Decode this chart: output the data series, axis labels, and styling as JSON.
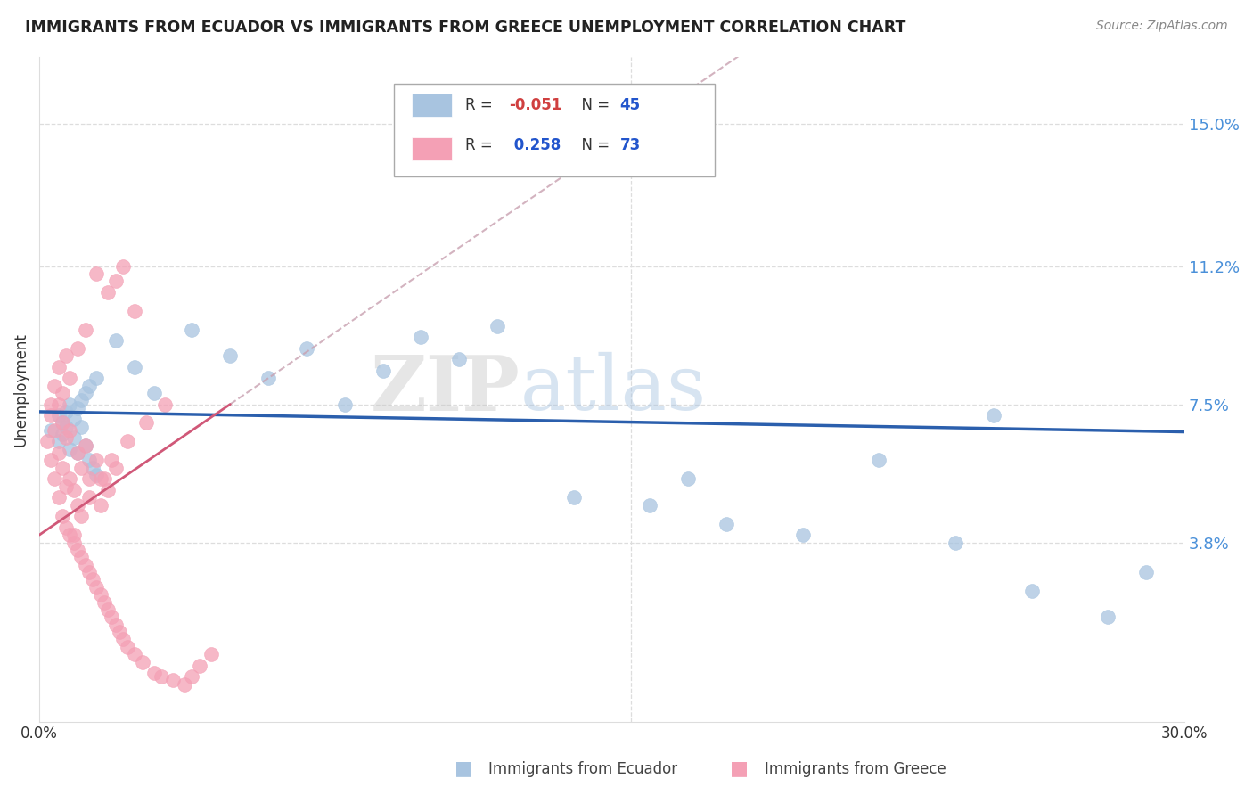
{
  "title": "IMMIGRANTS FROM ECUADOR VS IMMIGRANTS FROM GREECE UNEMPLOYMENT CORRELATION CHART",
  "source": "Source: ZipAtlas.com",
  "ylabel": "Unemployment",
  "ytick_labels": [
    "15.0%",
    "11.2%",
    "7.5%",
    "3.8%"
  ],
  "ytick_values": [
    0.15,
    0.112,
    0.075,
    0.038
  ],
  "xmin": 0.0,
  "xmax": 0.3,
  "ymin": -0.01,
  "ymax": 0.168,
  "legend_ecuador_R": "-0.051",
  "legend_ecuador_N": "45",
  "legend_greece_R": "0.258",
  "legend_greece_N": "73",
  "color_ecuador": "#a8c4e0",
  "color_ecuador_edge": "#7aacd0",
  "color_greece": "#f4a0b5",
  "color_greece_edge": "#e07090",
  "trendline_ecuador_color": "#2b5fad",
  "trendline_greece_color": "#d05878",
  "trendline_greece_dash_color": "#c8a0b0",
  "watermark_color": "#d8e4f0",
  "title_color": "#222222",
  "source_color": "#888888",
  "ytick_color": "#4a90d9",
  "grid_color": "#dddddd",
  "ecuador_x": [
    0.003,
    0.005,
    0.005,
    0.006,
    0.006,
    0.007,
    0.007,
    0.008,
    0.008,
    0.009,
    0.009,
    0.01,
    0.01,
    0.011,
    0.011,
    0.012,
    0.012,
    0.013,
    0.013,
    0.014,
    0.015,
    0.015,
    0.02,
    0.025,
    0.03,
    0.04,
    0.05,
    0.06,
    0.07,
    0.08,
    0.09,
    0.1,
    0.11,
    0.12,
    0.14,
    0.16,
    0.17,
    0.18,
    0.2,
    0.22,
    0.24,
    0.26,
    0.28,
    0.25,
    0.29
  ],
  "ecuador_y": [
    0.068,
    0.072,
    0.065,
    0.07,
    0.067,
    0.073,
    0.069,
    0.075,
    0.063,
    0.071,
    0.066,
    0.074,
    0.062,
    0.069,
    0.076,
    0.064,
    0.078,
    0.06,
    0.08,
    0.058,
    0.082,
    0.056,
    0.092,
    0.085,
    0.078,
    0.095,
    0.088,
    0.082,
    0.09,
    0.075,
    0.084,
    0.093,
    0.087,
    0.096,
    0.05,
    0.048,
    0.055,
    0.043,
    0.04,
    0.06,
    0.038,
    0.025,
    0.018,
    0.072,
    0.03
  ],
  "greece_x": [
    0.002,
    0.003,
    0.003,
    0.004,
    0.004,
    0.005,
    0.005,
    0.005,
    0.006,
    0.006,
    0.006,
    0.007,
    0.007,
    0.007,
    0.008,
    0.008,
    0.008,
    0.009,
    0.009,
    0.01,
    0.01,
    0.01,
    0.011,
    0.011,
    0.012,
    0.012,
    0.013,
    0.013,
    0.014,
    0.015,
    0.015,
    0.016,
    0.016,
    0.017,
    0.017,
    0.018,
    0.018,
    0.019,
    0.02,
    0.02,
    0.021,
    0.022,
    0.023,
    0.025,
    0.027,
    0.03,
    0.032,
    0.035,
    0.038,
    0.04,
    0.042,
    0.045,
    0.015,
    0.018,
    0.02,
    0.022,
    0.025,
    0.01,
    0.012,
    0.008,
    0.007,
    0.006,
    0.005,
    0.004,
    0.003,
    0.009,
    0.011,
    0.013,
    0.016,
    0.019,
    0.023,
    0.028,
    0.033
  ],
  "greece_y": [
    0.065,
    0.06,
    0.072,
    0.055,
    0.068,
    0.05,
    0.062,
    0.075,
    0.045,
    0.058,
    0.07,
    0.042,
    0.053,
    0.066,
    0.04,
    0.055,
    0.068,
    0.038,
    0.052,
    0.036,
    0.048,
    0.062,
    0.034,
    0.058,
    0.032,
    0.064,
    0.03,
    0.055,
    0.028,
    0.026,
    0.06,
    0.024,
    0.048,
    0.022,
    0.055,
    0.02,
    0.052,
    0.018,
    0.016,
    0.058,
    0.014,
    0.012,
    0.01,
    0.008,
    0.006,
    0.003,
    0.002,
    0.001,
    0.0,
    0.002,
    0.005,
    0.008,
    0.11,
    0.105,
    0.108,
    0.112,
    0.1,
    0.09,
    0.095,
    0.082,
    0.088,
    0.078,
    0.085,
    0.08,
    0.075,
    0.04,
    0.045,
    0.05,
    0.055,
    0.06,
    0.065,
    0.07,
    0.075
  ]
}
